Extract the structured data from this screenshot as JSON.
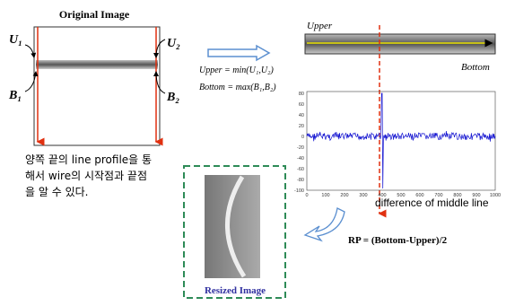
{
  "original": {
    "title": "Original Image",
    "labels": {
      "u1": "U₁",
      "u2": "U₂",
      "b1": "B₁",
      "b2": "B₂"
    }
  },
  "formulas": [
    "Upper = min(U₁,U₂)",
    "Bottom = max(B₁,B₂)"
  ],
  "profile": {
    "upper": "Upper",
    "bottom": "Bottom"
  },
  "plot": {
    "yticks": [
      "80",
      "60",
      "40",
      "20",
      "0",
      "-20",
      "-40",
      "-60",
      "-80",
      "-100"
    ],
    "xticks": [
      "0",
      "100",
      "200",
      "300",
      "400",
      "500",
      "600",
      "700",
      "800",
      "900",
      "1000"
    ],
    "caption": "difference of middle line"
  },
  "note": [
    "양쪽 끝의 line profile을 통",
    "해서 wire의 시작점과 끝점",
    "을 알 수 있다."
  ],
  "resized": {
    "title": "Resized Image"
  },
  "formula_rp": "RP =  (Bottom-Upper)/2"
}
